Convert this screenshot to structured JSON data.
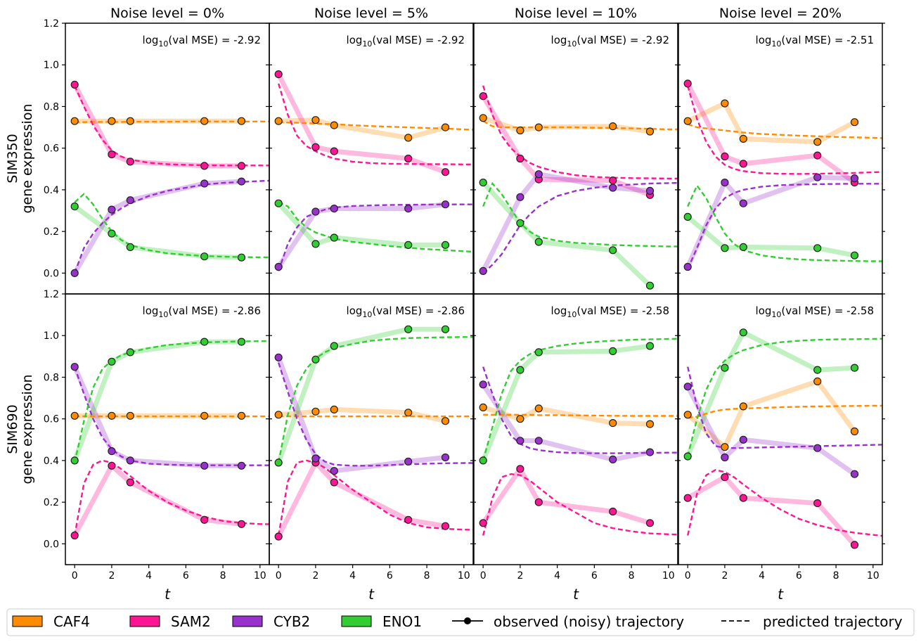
{
  "colors": {
    "CAF4": "#ff8c00",
    "SAM2": "#ff1493",
    "CYB2": "#9932cc",
    "ENO1": "#32cd32"
  },
  "legend": {
    "genes": [
      "CAF4",
      "SAM2",
      "CYB2",
      "ENO1"
    ],
    "observed_label": "observed (noisy) trajectory",
    "predicted_label": "predicted trajectory"
  },
  "chart_data": {
    "type": "line",
    "xlabel": "t",
    "xlim": [
      -0.5,
      10.5
    ],
    "ylim": [
      -0.1,
      1.2
    ],
    "x_ticks": [
      0,
      2,
      4,
      6,
      8,
      10
    ],
    "y_ticks": [
      0.0,
      0.2,
      0.4,
      0.6,
      0.8,
      1.0,
      1.2
    ],
    "y_tick_labels": [
      "0.0",
      "0.2",
      "0.4",
      "0.6",
      "0.8",
      "1.0",
      "1.2"
    ],
    "t_obs": [
      0,
      2,
      3,
      7,
      9
    ],
    "t_pred": [
      0,
      0.5,
      1,
      1.5,
      2,
      2.5,
      3,
      4,
      5,
      6,
      7,
      8,
      9,
      10,
      10.5
    ],
    "col_titles": [
      "Noise level = 0%",
      "Noise level = 5%",
      "Noise level = 10%",
      "Noise level = 20%"
    ],
    "row_labels": [
      [
        "SIM350",
        "gene expression"
      ],
      [
        "SIM690",
        "gene expression"
      ]
    ],
    "mse_prefix": "log",
    "mse_sub": "10",
    "mse_suffix": "(val MSE) = ",
    "panels": [
      {
        "row": 0,
        "col": 0,
        "mse": "-2.92",
        "series": {
          "CAF4": {
            "obs": [
              0.73,
              0.73,
              0.73,
              0.73,
              0.73
            ],
            "pred": [
              0.725,
              0.725,
              0.726,
              0.726,
              0.726,
              0.726,
              0.727,
              0.727,
              0.727,
              0.728,
              0.728,
              0.728,
              0.728,
              0.728,
              0.728
            ]
          },
          "SAM2": {
            "obs": [
              0.905,
              0.57,
              0.535,
              0.515,
              0.515
            ],
            "pred": [
              0.9,
              0.8,
              0.71,
              0.64,
              0.59,
              0.56,
              0.545,
              0.53,
              0.523,
              0.52,
              0.518,
              0.517,
              0.517,
              0.517,
              0.517
            ]
          },
          "CYB2": {
            "obs": [
              0.0,
              0.305,
              0.35,
              0.43,
              0.44
            ],
            "pred": [
              0.0,
              0.12,
              0.19,
              0.24,
              0.28,
              0.31,
              0.335,
              0.37,
              0.395,
              0.41,
              0.425,
              0.433,
              0.438,
              0.442,
              0.444
            ]
          },
          "ENO1": {
            "obs": [
              0.32,
              0.19,
              0.125,
              0.08,
              0.075
            ],
            "pred": [
              0.34,
              0.38,
              0.33,
              0.26,
              0.2,
              0.16,
              0.135,
              0.11,
              0.095,
              0.088,
              0.082,
              0.079,
              0.077,
              0.076,
              0.076
            ]
          }
        }
      },
      {
        "row": 0,
        "col": 1,
        "mse": "-2.92",
        "series": {
          "CAF4": {
            "obs": [
              0.73,
              0.735,
              0.71,
              0.65,
              0.7
            ],
            "pred": [
              0.725,
              0.723,
              0.722,
              0.72,
              0.718,
              0.716,
              0.715,
              0.71,
              0.706,
              0.703,
              0.7,
              0.697,
              0.694,
              0.69,
              0.688
            ]
          },
          "SAM2": {
            "obs": [
              0.955,
              0.605,
              0.585,
              0.55,
              0.485
            ],
            "pred": [
              0.91,
              0.76,
              0.66,
              0.61,
              0.585,
              0.565,
              0.55,
              0.535,
              0.528,
              0.525,
              0.524,
              0.523,
              0.523,
              0.522,
              0.522
            ]
          },
          "CYB2": {
            "obs": [
              0.03,
              0.295,
              0.31,
              0.31,
              0.33
            ],
            "pred": [
              0.01,
              0.14,
              0.22,
              0.27,
              0.29,
              0.305,
              0.315,
              0.322,
              0.325,
              0.327,
              0.328,
              0.329,
              0.33,
              0.33,
              0.33
            ]
          },
          "ENO1": {
            "obs": [
              0.335,
              0.14,
              0.17,
              0.135,
              0.135
            ],
            "pred": [
              0.34,
              0.32,
              0.26,
              0.22,
              0.195,
              0.18,
              0.165,
              0.15,
              0.14,
              0.13,
              0.122,
              0.115,
              0.11,
              0.105,
              0.103
            ]
          }
        }
      },
      {
        "row": 0,
        "col": 2,
        "mse": "-2.92",
        "series": {
          "CAF4": {
            "obs": [
              0.745,
              0.685,
              0.7,
              0.705,
              0.68
            ],
            "pred": [
              0.73,
              0.705,
              0.7,
              0.7,
              0.7,
              0.7,
              0.7,
              0.7,
              0.7,
              0.698,
              0.697,
              0.695,
              0.693,
              0.69,
              0.69
            ]
          },
          "SAM2": {
            "obs": [
              0.85,
              0.55,
              0.45,
              0.445,
              0.375
            ],
            "pred": [
              0.9,
              0.76,
              0.66,
              0.6,
              0.56,
              0.53,
              0.51,
              0.485,
              0.47,
              0.462,
              0.458,
              0.456,
              0.455,
              0.454,
              0.454
            ]
          },
          "CYB2": {
            "obs": [
              0.01,
              0.365,
              0.475,
              0.41,
              0.395
            ],
            "pred": [
              0.0,
              0.04,
              0.09,
              0.16,
              0.23,
              0.28,
              0.32,
              0.37,
              0.395,
              0.41,
              0.42,
              0.425,
              0.43,
              0.432,
              0.433
            ]
          },
          "ENO1": {
            "obs": [
              0.435,
              0.24,
              0.15,
              0.11,
              -0.06
            ],
            "pred": [
              0.32,
              0.43,
              0.38,
              0.31,
              0.24,
              0.2,
              0.175,
              0.155,
              0.145,
              0.14,
              0.135,
              0.132,
              0.13,
              0.128,
              0.128
            ]
          }
        }
      },
      {
        "row": 0,
        "col": 3,
        "mse": "-2.51",
        "series": {
          "CAF4": {
            "obs": [
              0.73,
              0.815,
              0.645,
              0.63,
              0.725
            ],
            "pred": [
              0.715,
              0.7,
              0.695,
              0.69,
              0.685,
              0.68,
              0.675,
              0.668,
              0.664,
              0.66,
              0.657,
              0.654,
              0.652,
              0.65,
              0.648
            ]
          },
          "SAM2": {
            "obs": [
              0.91,
              0.56,
              0.525,
              0.565,
              0.435
            ],
            "pred": [
              0.9,
              0.74,
              0.63,
              0.56,
              0.52,
              0.5,
              0.49,
              0.48,
              0.477,
              0.476,
              0.477,
              0.479,
              0.481,
              0.484,
              0.486
            ]
          },
          "CYB2": {
            "obs": [
              0.03,
              0.435,
              0.335,
              0.46,
              0.455
            ],
            "pred": [
              0.02,
              0.12,
              0.23,
              0.31,
              0.36,
              0.385,
              0.4,
              0.415,
              0.422,
              0.425,
              0.427,
              0.428,
              0.429,
              0.429,
              0.429
            ]
          },
          "ENO1": {
            "obs": [
              0.27,
              0.12,
              0.125,
              0.12,
              0.085
            ],
            "pred": [
              0.32,
              0.42,
              0.36,
              0.27,
              0.19,
              0.14,
              0.11,
              0.085,
              0.073,
              0.066,
              0.062,
              0.06,
              0.058,
              0.057,
              0.057
            ]
          }
        }
      },
      {
        "row": 1,
        "col": 0,
        "mse": "-2.86",
        "series": {
          "CAF4": {
            "obs": [
              0.615,
              0.615,
              0.615,
              0.615,
              0.615
            ],
            "pred": [
              0.612,
              0.612,
              0.612,
              0.612,
              0.612,
              0.612,
              0.612,
              0.612,
              0.612,
              0.612,
              0.612,
              0.612,
              0.612,
              0.612,
              0.612
            ]
          },
          "SAM2": {
            "obs": [
              0.04,
              0.375,
              0.295,
              0.115,
              0.095
            ],
            "pred": [
              0.04,
              0.29,
              0.38,
              0.4,
              0.39,
              0.36,
              0.325,
              0.255,
              0.2,
              0.16,
              0.13,
              0.11,
              0.1,
              0.095,
              0.094
            ]
          },
          "CYB2": {
            "obs": [
              0.85,
              0.445,
              0.4,
              0.375,
              0.375
            ],
            "pred": [
              0.85,
              0.72,
              0.6,
              0.51,
              0.455,
              0.42,
              0.4,
              0.385,
              0.38,
              0.378,
              0.377,
              0.377,
              0.377,
              0.377,
              0.377
            ]
          },
          "ENO1": {
            "obs": [
              0.4,
              0.875,
              0.92,
              0.97,
              0.97
            ],
            "pred": [
              0.39,
              0.59,
              0.75,
              0.84,
              0.88,
              0.905,
              0.92,
              0.94,
              0.955,
              0.962,
              0.967,
              0.97,
              0.972,
              0.973,
              0.973
            ]
          }
        }
      },
      {
        "row": 1,
        "col": 1,
        "mse": "-2.86",
        "series": {
          "CAF4": {
            "obs": [
              0.62,
              0.635,
              0.645,
              0.63,
              0.59
            ],
            "pred": [
              0.612,
              0.612,
              0.612,
              0.612,
              0.612,
              0.612,
              0.612,
              0.612,
              0.612,
              0.612,
              0.612,
              0.612,
              0.612,
              0.612,
              0.612
            ]
          },
          "SAM2": {
            "obs": [
              0.035,
              0.39,
              0.295,
              0.115,
              0.085
            ],
            "pred": [
              0.04,
              0.3,
              0.39,
              0.4,
              0.39,
              0.365,
              0.33,
              0.26,
              0.2,
              0.14,
              0.1,
              0.08,
              0.072,
              0.068,
              0.067
            ]
          },
          "CYB2": {
            "obs": [
              0.895,
              0.41,
              0.35,
              0.395,
              0.415
            ],
            "pred": [
              0.87,
              0.73,
              0.6,
              0.5,
              0.43,
              0.395,
              0.38,
              0.375,
              0.375,
              0.378,
              0.382,
              0.385,
              0.387,
              0.388,
              0.388
            ]
          },
          "ENO1": {
            "obs": [
              0.39,
              0.885,
              0.95,
              1.03,
              1.03
            ],
            "pred": [
              0.39,
              0.62,
              0.76,
              0.84,
              0.89,
              0.92,
              0.94,
              0.96,
              0.975,
              0.983,
              0.988,
              0.99,
              0.992,
              0.993,
              0.993
            ]
          }
        }
      },
      {
        "row": 1,
        "col": 2,
        "mse": "-2.58",
        "series": {
          "CAF4": {
            "obs": [
              0.655,
              0.6,
              0.65,
              0.58,
              0.575
            ],
            "pred": [
              0.62,
              0.62,
              0.62,
              0.62,
              0.62,
              0.62,
              0.618,
              0.618,
              0.617,
              0.616,
              0.615,
              0.614,
              0.614,
              0.614,
              0.614
            ]
          },
          "SAM2": {
            "obs": [
              0.1,
              0.36,
              0.2,
              0.155,
              0.1
            ],
            "pred": [
              0.04,
              0.22,
              0.32,
              0.335,
              0.33,
              0.305,
              0.27,
              0.2,
              0.15,
              0.1,
              0.075,
              0.06,
              0.05,
              0.046,
              0.045
            ]
          },
          "CYB2": {
            "obs": [
              0.765,
              0.495,
              0.495,
              0.405,
              0.44
            ],
            "pred": [
              0.85,
              0.72,
              0.6,
              0.52,
              0.48,
              0.46,
              0.45,
              0.44,
              0.436,
              0.435,
              0.435,
              0.436,
              0.437,
              0.438,
              0.438
            ]
          },
          "ENO1": {
            "obs": [
              0.4,
              0.835,
              0.92,
              0.925,
              0.95
            ],
            "pred": [
              0.4,
              0.56,
              0.72,
              0.83,
              0.88,
              0.91,
              0.93,
              0.95,
              0.962,
              0.97,
              0.975,
              0.98,
              0.982,
              0.984,
              0.985
            ]
          }
        }
      },
      {
        "row": 1,
        "col": 3,
        "mse": "-2.58",
        "series": {
          "CAF4": {
            "obs": [
              0.62,
              0.465,
              0.66,
              0.78,
              0.54
            ],
            "pred": [
              0.605,
              0.61,
              0.625,
              0.638,
              0.645,
              0.648,
              0.65,
              0.653,
              0.656,
              0.658,
              0.66,
              0.661,
              0.662,
              0.663,
              0.663
            ]
          },
          "SAM2": {
            "obs": [
              0.22,
              0.32,
              0.22,
              0.195,
              -0.005
            ],
            "pred": [
              0.04,
              0.24,
              0.33,
              0.355,
              0.345,
              0.32,
              0.285,
              0.22,
              0.165,
              0.12,
              0.09,
              0.068,
              0.053,
              0.043,
              0.038
            ]
          },
          "CYB2": {
            "obs": [
              0.755,
              0.415,
              0.5,
              0.46,
              0.335
            ],
            "pred": [
              0.85,
              0.66,
              0.53,
              0.47,
              0.46,
              0.46,
              0.461,
              0.463,
              0.465,
              0.467,
              0.469,
              0.471,
              0.473,
              0.475,
              0.476
            ]
          },
          "ENO1": {
            "obs": [
              0.42,
              0.845,
              1.015,
              0.835,
              0.845
            ],
            "pred": [
              0.42,
              0.6,
              0.74,
              0.83,
              0.88,
              0.91,
              0.93,
              0.955,
              0.968,
              0.975,
              0.98,
              0.982,
              0.983,
              0.984,
              0.985
            ]
          }
        }
      }
    ]
  }
}
